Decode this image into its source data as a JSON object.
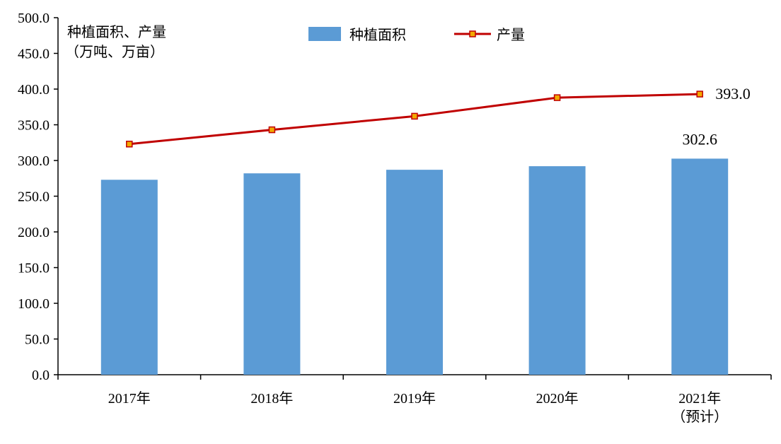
{
  "chart_data": {
    "type": "bar",
    "ylabel": [
      "种植面积、产量",
      "（万吨、万亩）"
    ],
    "ylim": [
      0,
      500
    ],
    "yticks": [
      "0.0",
      "50.0",
      "100.0",
      "150.0",
      "200.0",
      "250.0",
      "300.0",
      "350.0",
      "400.0",
      "450.0",
      "500.0"
    ],
    "categories": [
      [
        "2017年"
      ],
      [
        "2018年"
      ],
      [
        "2019年"
      ],
      [
        "2020年"
      ],
      [
        "2021年",
        "（预计）"
      ]
    ],
    "series": [
      {
        "name": "种植面积",
        "type": "bar",
        "color": "#5b9bd5",
        "values": [
          273,
          282,
          287,
          292,
          302.6
        ],
        "labels": [
          "",
          "",
          "",
          "",
          "302.6"
        ]
      },
      {
        "name": "产量",
        "type": "line",
        "color": "#c00000",
        "marker_color": "#f2a900",
        "values": [
          323,
          343,
          362,
          388,
          393.0
        ],
        "labels": [
          "",
          "",
          "",
          "",
          "393.0"
        ]
      }
    ],
    "legend_position": "top-center",
    "grid": false
  }
}
